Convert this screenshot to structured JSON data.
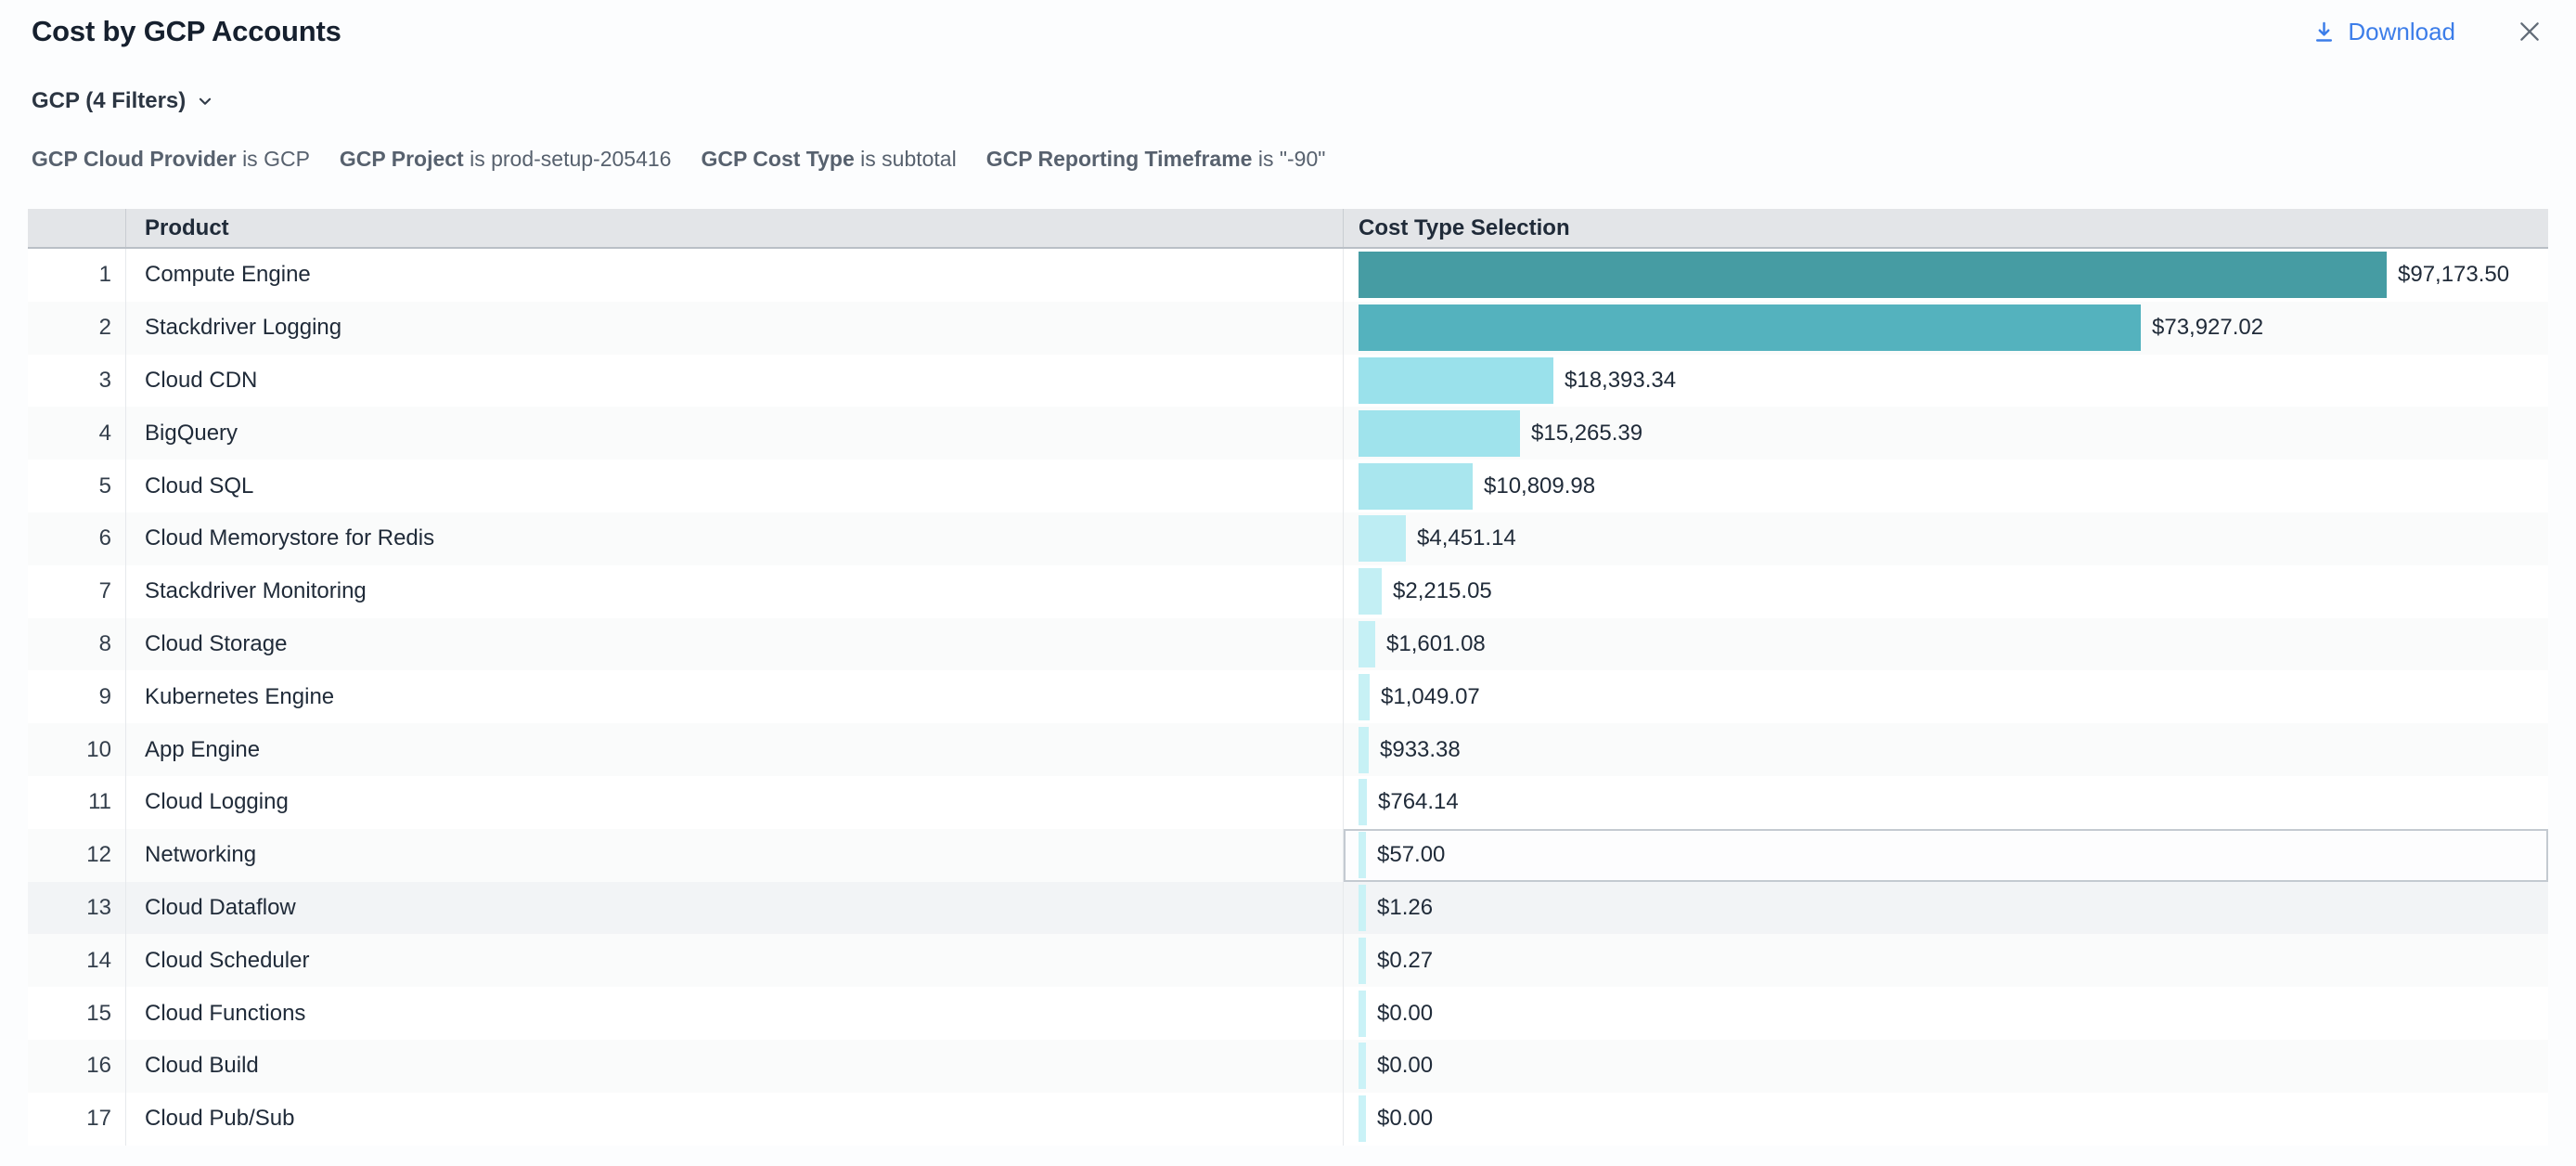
{
  "window": {
    "title": "Cost by GCP Accounts",
    "download_label": "Download"
  },
  "filters": {
    "summary_label": "GCP (4 Filters)",
    "applied": [
      {
        "name": "GCP Cloud Provider",
        "condition": "is GCP"
      },
      {
        "name": "GCP Project",
        "condition": "is prod-setup-205416"
      },
      {
        "name": "GCP Cost Type",
        "condition": "is subtotal"
      },
      {
        "name": "GCP Reporting Timeframe",
        "condition": "is \"-90\""
      }
    ]
  },
  "table": {
    "headers": {
      "product": "Product",
      "cost": "Cost Type Selection"
    },
    "rows": [
      {
        "num": "1",
        "product": "Compute Engine",
        "amount": 97173.5,
        "label": "$97,173.50",
        "bar_color": "#469ca3"
      },
      {
        "num": "2",
        "product": "Stackdriver Logging",
        "amount": 73927.02,
        "label": "$73,927.02",
        "bar_color": "#54b2be"
      },
      {
        "num": "3",
        "product": "Cloud CDN",
        "amount": 18393.34,
        "label": "$18,393.34",
        "bar_color": "#9ae1eb"
      },
      {
        "num": "4",
        "product": "BigQuery",
        "amount": 15265.39,
        "label": "$15,265.39",
        "bar_color": "#9fe3ec"
      },
      {
        "num": "5",
        "product": "Cloud SQL",
        "amount": 10809.98,
        "label": "$10,809.98",
        "bar_color": "#a9e6ee"
      },
      {
        "num": "6",
        "product": "Cloud Memorystore for Redis",
        "amount": 4451.14,
        "label": "$4,451.14",
        "bar_color": "#bdedf3"
      },
      {
        "num": "7",
        "product": "Stackdriver Monitoring",
        "amount": 2215.05,
        "label": "$2,215.05",
        "bar_color": "#c3eff4"
      },
      {
        "num": "8",
        "product": "Cloud Storage",
        "amount": 1601.08,
        "label": "$1,601.08",
        "bar_color": "#c5f0f5"
      },
      {
        "num": "9",
        "product": "Kubernetes Engine",
        "amount": 1049.07,
        "label": "$1,049.07",
        "bar_color": "#c7f1f5"
      },
      {
        "num": "10",
        "product": "App Engine",
        "amount": 933.38,
        "label": "$933.38",
        "bar_color": "#c7f1f5"
      },
      {
        "num": "11",
        "product": "Cloud Logging",
        "amount": 764.14,
        "label": "$764.14",
        "bar_color": "#c8f1f6"
      },
      {
        "num": "12",
        "product": "Networking",
        "amount": 57.0,
        "label": "$57.00",
        "bar_color": "#c9f2f6",
        "selected_cell": true
      },
      {
        "num": "13",
        "product": "Cloud Dataflow",
        "amount": 1.26,
        "label": "$1.26",
        "bar_color": "#c9f2f6",
        "hovered": true
      },
      {
        "num": "14",
        "product": "Cloud Scheduler",
        "amount": 0.27,
        "label": "$0.27",
        "bar_color": "#caf2f6"
      },
      {
        "num": "15",
        "product": "Cloud Functions",
        "amount": 0.0,
        "label": "$0.00",
        "bar_color": "#caf2f7"
      },
      {
        "num": "16",
        "product": "Cloud Build",
        "amount": 0.0,
        "label": "$0.00",
        "bar_color": "#caf2f7"
      },
      {
        "num": "17",
        "product": "Cloud Pub/Sub",
        "amount": 0.0,
        "label": "$0.00",
        "bar_color": "#caf2f7"
      }
    ]
  },
  "chart_data": {
    "type": "bar",
    "orientation": "horizontal",
    "title": "Cost by GCP Accounts",
    "series_name": "Cost Type Selection",
    "categories": [
      "Compute Engine",
      "Stackdriver Logging",
      "Cloud CDN",
      "BigQuery",
      "Cloud SQL",
      "Cloud Memorystore for Redis",
      "Stackdriver Monitoring",
      "Cloud Storage",
      "Kubernetes Engine",
      "App Engine",
      "Cloud Logging",
      "Networking",
      "Cloud Dataflow",
      "Cloud Scheduler",
      "Cloud Functions",
      "Cloud Build",
      "Cloud Pub/Sub"
    ],
    "values": [
      97173.5,
      73927.02,
      18393.34,
      15265.39,
      10809.98,
      4451.14,
      2215.05,
      1601.08,
      1049.07,
      933.38,
      764.14,
      57.0,
      1.26,
      0.27,
      0.0,
      0.0,
      0.0
    ],
    "value_labels": [
      "$97,173.50",
      "$73,927.02",
      "$18,393.34",
      "$15,265.39",
      "$10,809.98",
      "$4,451.14",
      "$2,215.05",
      "$1,601.08",
      "$1,049.07",
      "$933.38",
      "$764.14",
      "$57.00",
      "$1.26",
      "$0.27",
      "$0.00",
      "$0.00",
      "$0.00"
    ],
    "xlim": [
      0,
      100000
    ],
    "grid": false,
    "legend": false,
    "color_scale": [
      "#469ca3",
      "#caf2f7"
    ]
  },
  "colors": {
    "accent_blue": "#3c7de9",
    "header_bg": "#e3e5e8",
    "zebra_row": "#fafbfb",
    "hover_row": "#f2f4f6",
    "bar_max": "#469ca3",
    "bar_min": "#caf2f7"
  }
}
